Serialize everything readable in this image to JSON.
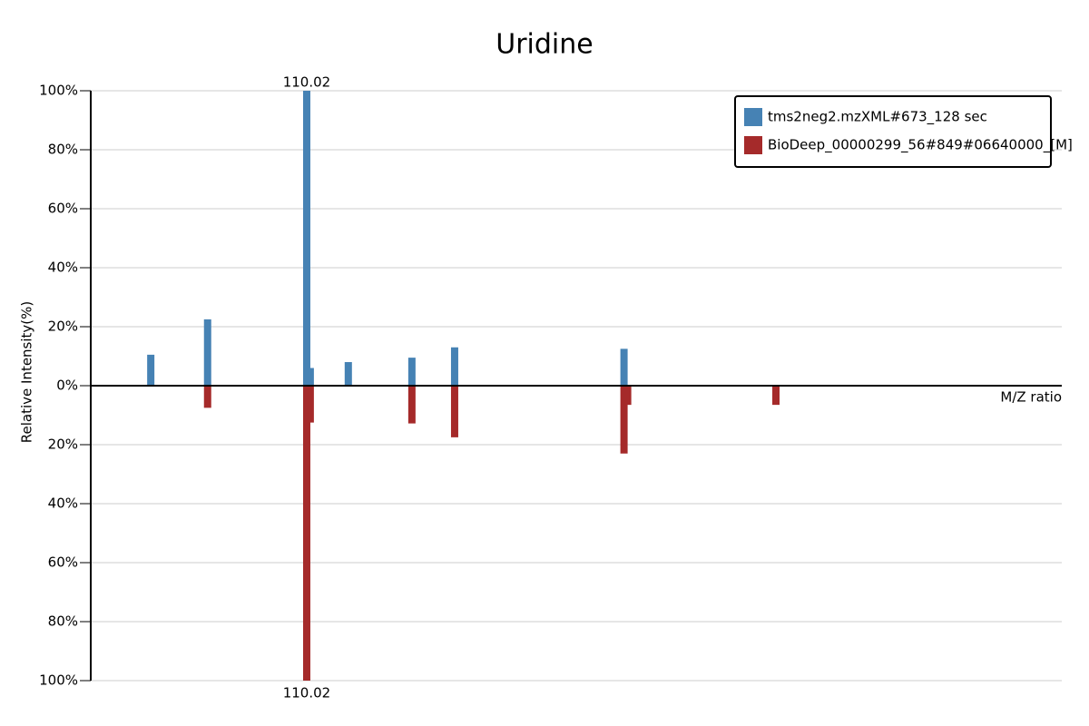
{
  "chart_data": {
    "type": "mirror-bar",
    "title": "Uridine",
    "y_label": "Relative Intensity(%)",
    "x_label": "M/Z ratio",
    "xlim": [
      68.58,
      254.9
    ],
    "ylim": [
      -100,
      100
    ],
    "yticks": [
      {
        "value": -100,
        "label": "100%"
      },
      {
        "value": -80,
        "label": "80%"
      },
      {
        "value": -60,
        "label": "60%"
      },
      {
        "value": -40,
        "label": "40%"
      },
      {
        "value": -20,
        "label": "20%"
      },
      {
        "value": 0,
        "label": "0%"
      },
      {
        "value": 20,
        "label": "20%"
      },
      {
        "value": 40,
        "label": "40%"
      },
      {
        "value": 60,
        "label": "60%"
      },
      {
        "value": 80,
        "label": "80%"
      },
      {
        "value": 100,
        "label": "100%"
      }
    ],
    "grid": true,
    "legend": "top-right",
    "series": [
      {
        "name": "tms2neg2.mzXML#673_128 sec",
        "color": "#4682b4",
        "x": [
          80.1,
          91.0,
          110.02,
          110.7,
          118.0,
          130.2,
          138.4,
          170.9
        ],
        "values": [
          10.5,
          22.5,
          100,
          6,
          8,
          9.5,
          13,
          12.5
        ]
      },
      {
        "name": "BioDeep_00000299_56#849#06640000_[M]",
        "color": "#a52a2a",
        "x": [
          91.0,
          110.02,
          110.7,
          130.2,
          138.4,
          170.9,
          171.6,
          200.05
        ],
        "values": [
          -7.5,
          -100,
          -12.5,
          -12.8,
          -17.5,
          -23,
          -6.5,
          -6.5
        ]
      }
    ],
    "annotations": [
      {
        "text": "110.02"
      },
      {
        "text": "110.02"
      }
    ]
  }
}
